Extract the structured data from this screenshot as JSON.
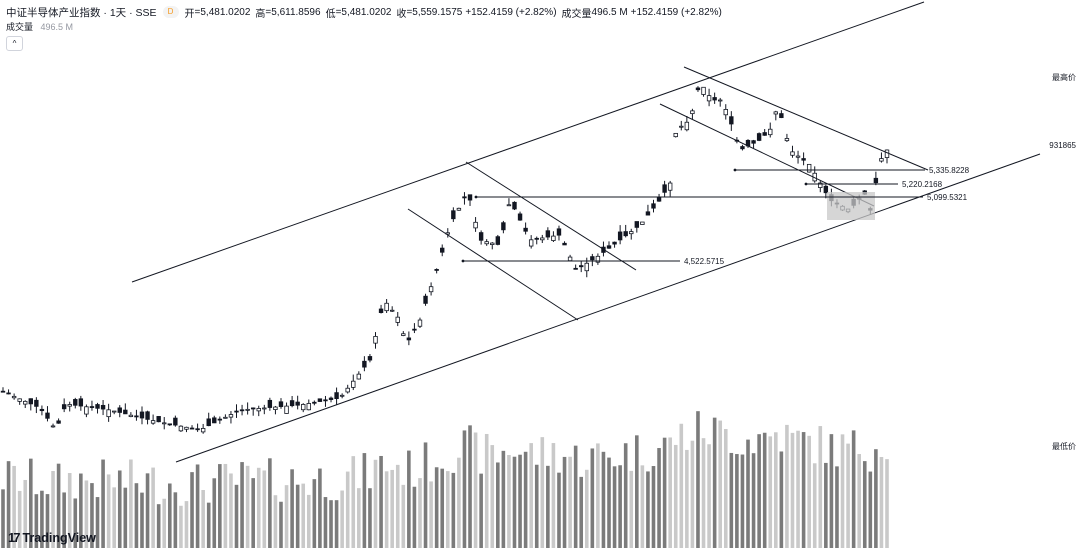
{
  "header": {
    "symbol_title": "中证半导体产业指数 · 1天 · SSE",
    "badge": "D",
    "open_label": "开",
    "open_value": "=5,481.0202",
    "high_label": "高",
    "high_value": "=5,611.8596",
    "low_label": "低",
    "low_value": "=5,481.0202",
    "close_label": "收",
    "close_value": "=5,559.1575",
    "change": "+152.4159 (+2.82%)",
    "volume_label": "成交量",
    "volume_value": "496.5 M",
    "volume_change": "+152.4159 (+2.82%)"
  },
  "volume_row": {
    "label": "成交量",
    "value": "496.5 M"
  },
  "collapse_button": {
    "label": "^"
  },
  "right_labels": {
    "highest": "最高价",
    "lowest": "最低价",
    "partial_value": "931865"
  },
  "logo": {
    "text": "TradingView",
    "mark": "17"
  },
  "chart_data": {
    "type": "candlestick",
    "price_range": [
      3600,
      6200
    ],
    "candle_count": 160,
    "price_levels": [
      {
        "label": "5,335.8228",
        "value": 5335.8228
      },
      {
        "label": "5,220.2168",
        "value": 5220.2168
      },
      {
        "label": "5,099.5321",
        "value": 5099.5321
      },
      {
        "label": "4,522.5715",
        "value": 4522.5715
      }
    ],
    "colors": {
      "candle": "#131722",
      "volume_dark": "#7b7b7b",
      "volume_light": "#c9c9c9",
      "line": "#131722",
      "zone": "#c8c8c8"
    }
  }
}
